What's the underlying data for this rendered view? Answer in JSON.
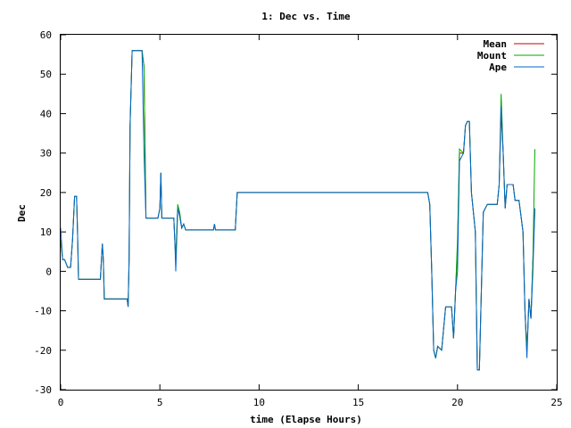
{
  "chart_data": {
    "type": "line",
    "title": "1: Dec vs. Time",
    "xlabel": "time (Elapse Hours)",
    "ylabel": "Dec",
    "xlim": [
      0,
      25
    ],
    "ylim": [
      -30,
      60
    ],
    "xticks": [
      0,
      5,
      10,
      15,
      20,
      25
    ],
    "yticks": [
      -30,
      -20,
      -10,
      0,
      10,
      20,
      30,
      40,
      50,
      60
    ],
    "grid": false,
    "legend_position": "top-right",
    "colors": {
      "Mean": "#cc0000",
      "Mount": "#00aa00",
      "Ape": "#0066cc"
    },
    "series": [
      {
        "name": "Mean",
        "x": [
          0,
          0.1,
          0.2,
          0.35,
          0.5,
          0.6,
          0.7,
          0.8,
          0.85,
          0.9,
          1.0,
          1.2,
          1.5,
          2.0,
          2.1,
          2.15,
          2.2,
          2.3,
          2.6,
          3.0,
          3.35,
          3.4,
          3.45,
          3.5,
          3.6,
          3.7,
          4.1,
          4.2,
          4.3,
          4.4,
          4.5,
          4.9,
          5.0,
          5.05,
          5.1,
          5.2,
          5.7,
          5.75,
          5.8,
          5.9,
          6.0,
          6.1,
          6.2,
          6.3,
          6.5,
          7.7,
          7.75,
          7.8,
          8.0,
          8.8,
          8.9,
          18.5,
          18.6,
          18.7,
          18.8,
          18.9,
          19.0,
          19.2,
          19.4,
          19.6,
          19.7,
          19.8,
          19.9,
          20.0,
          20.1,
          20.3,
          20.4,
          20.5,
          20.6,
          20.7,
          20.8,
          20.9,
          21.0,
          21.1,
          21.3,
          21.5,
          21.6,
          21.8,
          22.0,
          22.1,
          22.2,
          22.3,
          22.4,
          22.5,
          22.6,
          22.8,
          22.9,
          23.1,
          23.3,
          23.4,
          23.5,
          23.6,
          23.7,
          23.8,
          23.9
        ],
        "y": [
          8,
          3,
          3,
          1,
          1,
          8,
          19,
          19,
          10,
          -2,
          -2,
          -2,
          -2,
          -2,
          7,
          3,
          -7,
          -7,
          -7,
          -7,
          -7,
          -9,
          3,
          37,
          56,
          56,
          56,
          52,
          13.5,
          13.5,
          13.5,
          13.5,
          16,
          25,
          13.5,
          13.5,
          13.5,
          8,
          3,
          16,
          14,
          11,
          12,
          10.5,
          10.5,
          10.5,
          12,
          10.5,
          10.5,
          10.5,
          20,
          20,
          17,
          0,
          -20,
          -22,
          -19,
          -20,
          -9,
          -9,
          -9,
          -17,
          -5,
          6,
          30,
          30,
          37,
          38,
          38,
          20,
          15,
          10,
          -25,
          -25,
          15,
          17,
          17,
          17,
          17,
          22,
          40,
          30,
          16,
          22,
          22,
          22,
          18,
          18,
          10,
          -10,
          -20,
          -7,
          -12,
          3,
          16
        ]
      },
      {
        "name": "Mount",
        "x": [
          0,
          0.1,
          0.2,
          0.35,
          0.5,
          0.6,
          0.7,
          0.8,
          0.85,
          0.9,
          1.0,
          1.2,
          1.5,
          2.0,
          2.1,
          2.15,
          2.2,
          2.3,
          2.6,
          3.0,
          3.35,
          3.4,
          3.45,
          3.5,
          3.6,
          3.7,
          4.1,
          4.2,
          4.3,
          4.4,
          4.5,
          4.9,
          5.0,
          5.05,
          5.1,
          5.2,
          5.7,
          5.75,
          5.8,
          5.9,
          6.0,
          6.1,
          6.2,
          6.3,
          6.5,
          7.7,
          7.75,
          7.8,
          8.0,
          8.8,
          8.9,
          18.5,
          18.6,
          18.7,
          18.8,
          18.9,
          19.0,
          19.2,
          19.4,
          19.6,
          19.7,
          19.8,
          19.9,
          20.0,
          20.1,
          20.3,
          20.4,
          20.5,
          20.6,
          20.7,
          20.8,
          20.9,
          21.0,
          21.1,
          21.3,
          21.5,
          21.6,
          21.8,
          22.0,
          22.1,
          22.2,
          22.3,
          22.4,
          22.5,
          22.6,
          22.8,
          22.9,
          23.1,
          23.3,
          23.4,
          23.5,
          23.6,
          23.7,
          23.8,
          23.9
        ],
        "y": [
          8,
          3,
          3,
          1,
          1,
          8,
          19,
          19,
          10,
          -2,
          -2,
          -2,
          -2,
          -2,
          7,
          3,
          -7,
          -7,
          -7,
          -7,
          -7,
          -9,
          3,
          37,
          56,
          56,
          56,
          52,
          13.5,
          13.5,
          13.5,
          13.5,
          16,
          25,
          13.5,
          13.5,
          13.5,
          8,
          3,
          17,
          15,
          11,
          12,
          10.5,
          10.5,
          10.5,
          12,
          10.5,
          10.5,
          10.5,
          20,
          20,
          17,
          0,
          -20,
          -22,
          -19,
          -20,
          -9,
          -9,
          -9,
          -17,
          -5,
          8,
          31,
          30,
          37,
          38,
          38,
          20,
          15,
          10,
          -25,
          -25,
          15,
          17,
          17,
          17,
          17,
          22,
          45,
          30,
          16,
          22,
          22,
          22,
          18,
          18,
          10,
          -10,
          -20,
          -7,
          -12,
          3,
          31
        ]
      },
      {
        "name": "Ape",
        "x": [
          0,
          0.1,
          0.2,
          0.35,
          0.5,
          0.6,
          0.7,
          0.8,
          0.85,
          0.9,
          1.0,
          1.2,
          1.5,
          2.0,
          2.1,
          2.15,
          2.2,
          2.3,
          2.6,
          3.0,
          3.35,
          3.4,
          3.45,
          3.5,
          3.6,
          3.7,
          4.1,
          4.2,
          4.3,
          4.4,
          4.5,
          4.9,
          5.0,
          5.05,
          5.1,
          5.2,
          5.7,
          5.75,
          5.8,
          5.9,
          6.0,
          6.1,
          6.2,
          6.3,
          6.5,
          7.7,
          7.75,
          7.8,
          8.0,
          8.8,
          8.9,
          18.5,
          18.6,
          18.7,
          18.8,
          18.9,
          19.0,
          19.2,
          19.4,
          19.6,
          19.7,
          19.8,
          19.9,
          20.0,
          20.1,
          20.3,
          20.4,
          20.5,
          20.6,
          20.7,
          20.8,
          20.9,
          21.0,
          21.1,
          21.3,
          21.5,
          21.6,
          21.8,
          22.0,
          22.1,
          22.2,
          22.3,
          22.4,
          22.5,
          22.6,
          22.8,
          22.9,
          23.1,
          23.3,
          23.4,
          23.5,
          23.6,
          23.7,
          23.8,
          23.9
        ],
        "y": [
          11,
          3,
          3,
          1,
          1,
          8,
          19,
          19,
          10,
          -2,
          -2,
          -2,
          -2,
          -2,
          7,
          3,
          -7,
          -7,
          -7,
          -7,
          -7,
          -9,
          3,
          37,
          56,
          56,
          56,
          30,
          13.5,
          13.5,
          13.5,
          13.5,
          16,
          25,
          13.5,
          13.5,
          13.5,
          8,
          0,
          16,
          14,
          11,
          12,
          10.5,
          10.5,
          10.5,
          12,
          10.5,
          10.5,
          10.5,
          20,
          20,
          17,
          0,
          -20,
          -22,
          -19,
          -20,
          -9,
          -9,
          -9,
          -17,
          -5,
          0,
          28,
          30,
          37,
          38,
          38,
          20,
          15,
          10,
          -25,
          -25,
          15,
          17,
          17,
          17,
          17,
          22,
          42,
          30,
          16,
          22,
          22,
          22,
          18,
          18,
          10,
          -10,
          -22,
          -7,
          -12,
          0,
          16
        ]
      }
    ]
  }
}
